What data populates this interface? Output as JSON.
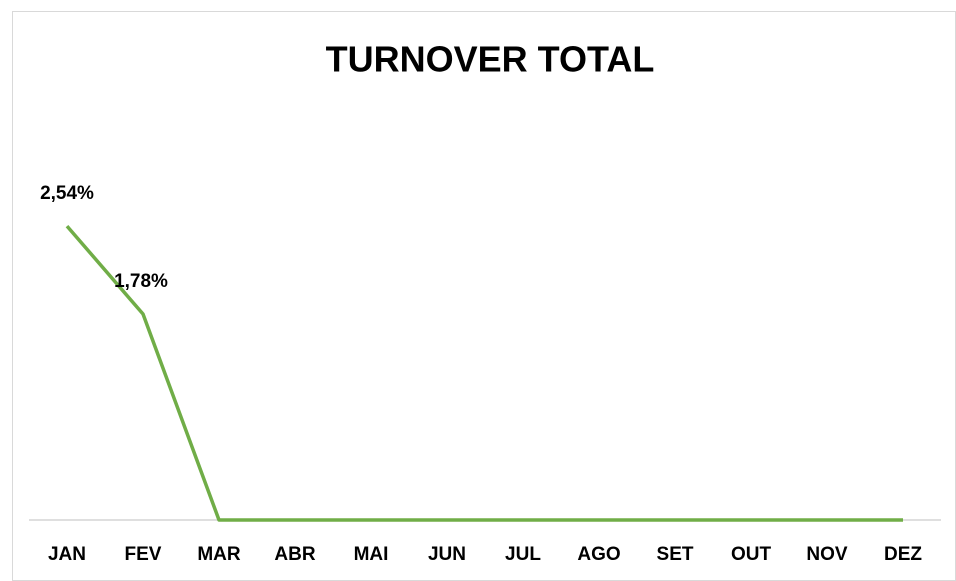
{
  "chart_data": {
    "type": "line",
    "title": "TURNOVER TOTAL",
    "categories": [
      "JAN",
      "FEV",
      "MAR",
      "ABR",
      "MAI",
      "JUN",
      "JUL",
      "AGO",
      "SET",
      "OUT",
      "NOV",
      "DEZ"
    ],
    "values": [
      2.54,
      1.78,
      0,
      0,
      0,
      0,
      0,
      0,
      0,
      0,
      0,
      0
    ],
    "value_labels": [
      "2,54%",
      "1,78%",
      null,
      null,
      null,
      null,
      null,
      null,
      null,
      null,
      null,
      null
    ],
    "color": "#70ad47",
    "ylim": [
      0,
      3.5
    ]
  }
}
